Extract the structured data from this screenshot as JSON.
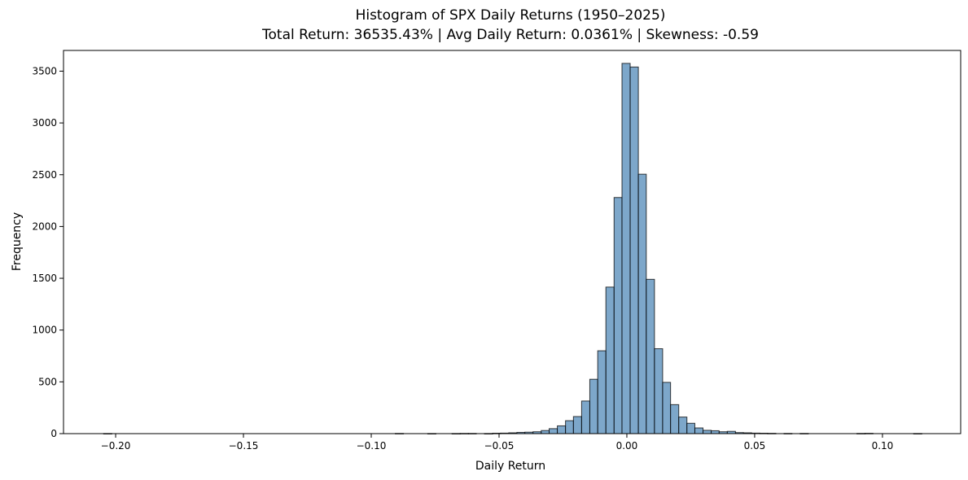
{
  "chart_data": {
    "type": "bar",
    "title": "Histogram of SPX Daily Returns (1950–2025)",
    "subtitle": "Total Return: 36535.43% | Avg Daily Return: 0.0361% | Skewness: -0.59",
    "xlabel": "Daily Return",
    "ylabel": "Frequency",
    "xlim": [
      -0.2204,
      0.1306
    ],
    "ylim": [
      0,
      3700
    ],
    "xticks": [
      -0.2,
      -0.15,
      -0.1,
      -0.05,
      0.0,
      0.05,
      0.1
    ],
    "xtick_labels": [
      "−0.20",
      "−0.15",
      "−0.10",
      "−0.05",
      "0.00",
      "0.05",
      "0.10"
    ],
    "yticks": [
      0,
      500,
      1000,
      1500,
      2000,
      2500,
      3000,
      3500
    ],
    "ytick_labels": [
      "0",
      "500",
      "1000",
      "1500",
      "2000",
      "2500",
      "3000",
      "3500"
    ],
    "grid": false,
    "bar_color": "#4682b4",
    "bins": [
      {
        "x0": -0.2047,
        "x1": -0.2015,
        "value": 1
      },
      {
        "x0": -0.0906,
        "x1": -0.0874,
        "value": 2
      },
      {
        "x0": -0.0779,
        "x1": -0.0747,
        "value": 1
      },
      {
        "x0": -0.0684,
        "x1": -0.0652,
        "value": 1
      },
      {
        "x0": -0.0652,
        "x1": -0.062,
        "value": 2
      },
      {
        "x0": -0.062,
        "x1": -0.0589,
        "value": 2
      },
      {
        "x0": -0.0557,
        "x1": -0.0525,
        "value": 1
      },
      {
        "x0": -0.0525,
        "x1": -0.0494,
        "value": 4
      },
      {
        "x0": -0.0494,
        "x1": -0.0462,
        "value": 5
      },
      {
        "x0": -0.0462,
        "x1": -0.043,
        "value": 8
      },
      {
        "x0": -0.043,
        "x1": -0.0399,
        "value": 12
      },
      {
        "x0": -0.0399,
        "x1": -0.0367,
        "value": 14
      },
      {
        "x0": -0.0367,
        "x1": -0.0335,
        "value": 18
      },
      {
        "x0": -0.0335,
        "x1": -0.0304,
        "value": 30
      },
      {
        "x0": -0.0304,
        "x1": -0.0272,
        "value": 48
      },
      {
        "x0": -0.0272,
        "x1": -0.024,
        "value": 75
      },
      {
        "x0": -0.024,
        "x1": -0.0209,
        "value": 125
      },
      {
        "x0": -0.0209,
        "x1": -0.0177,
        "value": 165
      },
      {
        "x0": -0.0177,
        "x1": -0.0145,
        "value": 315
      },
      {
        "x0": -0.0145,
        "x1": -0.0114,
        "value": 525
      },
      {
        "x0": -0.0114,
        "x1": -0.0082,
        "value": 800
      },
      {
        "x0": -0.0082,
        "x1": -0.005,
        "value": 1415
      },
      {
        "x0": -0.005,
        "x1": -0.0019,
        "value": 2280
      },
      {
        "x0": -0.0019,
        "x1": 0.0013,
        "value": 3575
      },
      {
        "x0": 0.0013,
        "x1": 0.0045,
        "value": 3540
      },
      {
        "x0": 0.0045,
        "x1": 0.0076,
        "value": 2505
      },
      {
        "x0": 0.0076,
        "x1": 0.0108,
        "value": 1490
      },
      {
        "x0": 0.0108,
        "x1": 0.014,
        "value": 820
      },
      {
        "x0": 0.014,
        "x1": 0.0171,
        "value": 495
      },
      {
        "x0": 0.0171,
        "x1": 0.0203,
        "value": 280
      },
      {
        "x0": 0.0203,
        "x1": 0.0235,
        "value": 160
      },
      {
        "x0": 0.0235,
        "x1": 0.0266,
        "value": 100
      },
      {
        "x0": 0.0266,
        "x1": 0.0298,
        "value": 55
      },
      {
        "x0": 0.0298,
        "x1": 0.033,
        "value": 32
      },
      {
        "x0": 0.033,
        "x1": 0.0361,
        "value": 28
      },
      {
        "x0": 0.0361,
        "x1": 0.0393,
        "value": 18
      },
      {
        "x0": 0.0393,
        "x1": 0.0425,
        "value": 22
      },
      {
        "x0": 0.0425,
        "x1": 0.0456,
        "value": 10
      },
      {
        "x0": 0.0456,
        "x1": 0.0488,
        "value": 8
      },
      {
        "x0": 0.0488,
        "x1": 0.052,
        "value": 5
      },
      {
        "x0": 0.052,
        "x1": 0.0551,
        "value": 4
      },
      {
        "x0": 0.0551,
        "x1": 0.0583,
        "value": 3
      },
      {
        "x0": 0.0615,
        "x1": 0.0646,
        "value": 2
      },
      {
        "x0": 0.0678,
        "x1": 0.071,
        "value": 2
      },
      {
        "x0": 0.09,
        "x1": 0.0932,
        "value": 2
      },
      {
        "x0": 0.0932,
        "x1": 0.0963,
        "value": 3
      },
      {
        "x0": 0.1122,
        "x1": 0.1154,
        "value": 1
      }
    ]
  }
}
